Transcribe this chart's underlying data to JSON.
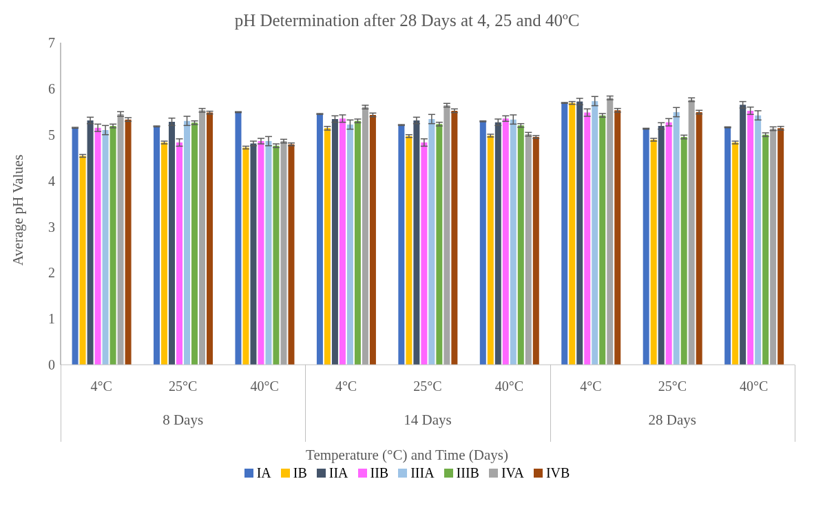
{
  "chart_data": {
    "type": "bar",
    "title": "pH Determination after 28 Days at 4, 25 and 40ºC",
    "xlabel": "Temperature (°C) and Time (Days)",
    "ylabel": "Average pH Values",
    "categories": [
      "4°C",
      "25°C",
      "40°C",
      "4°C",
      "25°C",
      "40°C",
      "4°C",
      "25°C",
      "40°C"
    ],
    "annotations": [
      "8 Days",
      "14 Days",
      "28 Days"
    ],
    "series": [
      {
        "name": "IA",
        "color": "#4472c4",
        "values": [
          5.15,
          5.18,
          5.49,
          5.45,
          5.21,
          5.29,
          5.69,
          5.13,
          5.16
        ],
        "errors": [
          0.01,
          0.01,
          0.01,
          0.01,
          0.01,
          0.01,
          0.01,
          0.01,
          0.01
        ]
      },
      {
        "name": "IB",
        "color": "#ffc000",
        "values": [
          4.54,
          4.83,
          4.72,
          5.14,
          4.97,
          4.98,
          5.69,
          4.89,
          4.83
        ],
        "errors": [
          0.03,
          0.03,
          0.03,
          0.04,
          0.03,
          0.03,
          0.03,
          0.03,
          0.03
        ]
      },
      {
        "name": "IIA",
        "color": "#44546a",
        "values": [
          5.31,
          5.28,
          4.81,
          5.34,
          5.31,
          5.27,
          5.72,
          5.19,
          5.65
        ],
        "errors": [
          0.07,
          0.08,
          0.05,
          0.07,
          0.07,
          0.07,
          0.07,
          0.07,
          0.07
        ]
      },
      {
        "name": "IIB",
        "color": "#ff66ff",
        "values": [
          5.15,
          4.83,
          4.86,
          5.35,
          4.83,
          5.35,
          5.48,
          5.27,
          5.52
        ],
        "errors": [
          0.08,
          0.08,
          0.06,
          0.08,
          0.08,
          0.06,
          0.08,
          0.08,
          0.08
        ]
      },
      {
        "name": "IIIA",
        "color": "#9dc3e6",
        "values": [
          5.1,
          5.3,
          4.86,
          5.22,
          5.34,
          5.33,
          5.73,
          5.49,
          5.42
        ],
        "errors": [
          0.1,
          0.1,
          0.1,
          0.1,
          0.1,
          0.1,
          0.1,
          0.1,
          0.1
        ]
      },
      {
        "name": "IIIB",
        "color": "#70ad47",
        "values": [
          5.19,
          5.26,
          4.76,
          5.3,
          5.23,
          5.2,
          5.42,
          4.95,
          5.0
        ],
        "errors": [
          0.04,
          0.04,
          0.04,
          0.04,
          0.04,
          0.04,
          0.04,
          0.04,
          0.04
        ]
      },
      {
        "name": "IVA",
        "color": "#a5a5a5",
        "values": [
          5.45,
          5.53,
          4.86,
          5.6,
          5.64,
          5.01,
          5.8,
          5.76,
          5.13
        ],
        "errors": [
          0.05,
          0.04,
          0.04,
          0.04,
          0.04,
          0.04,
          0.04,
          0.04,
          0.04
        ]
      },
      {
        "name": "IVB",
        "color": "#9e480e",
        "values": [
          5.33,
          5.48,
          4.79,
          5.43,
          5.52,
          4.95,
          5.53,
          5.49,
          5.14
        ],
        "errors": [
          0.04,
          0.03,
          0.03,
          0.04,
          0.04,
          0.03,
          0.04,
          0.04,
          0.04
        ]
      }
    ],
    "ylim": [
      0,
      7
    ],
    "yticks": [
      0,
      1,
      2,
      3,
      4,
      5,
      6,
      7
    ],
    "grid": false,
    "legend": "bottom"
  }
}
